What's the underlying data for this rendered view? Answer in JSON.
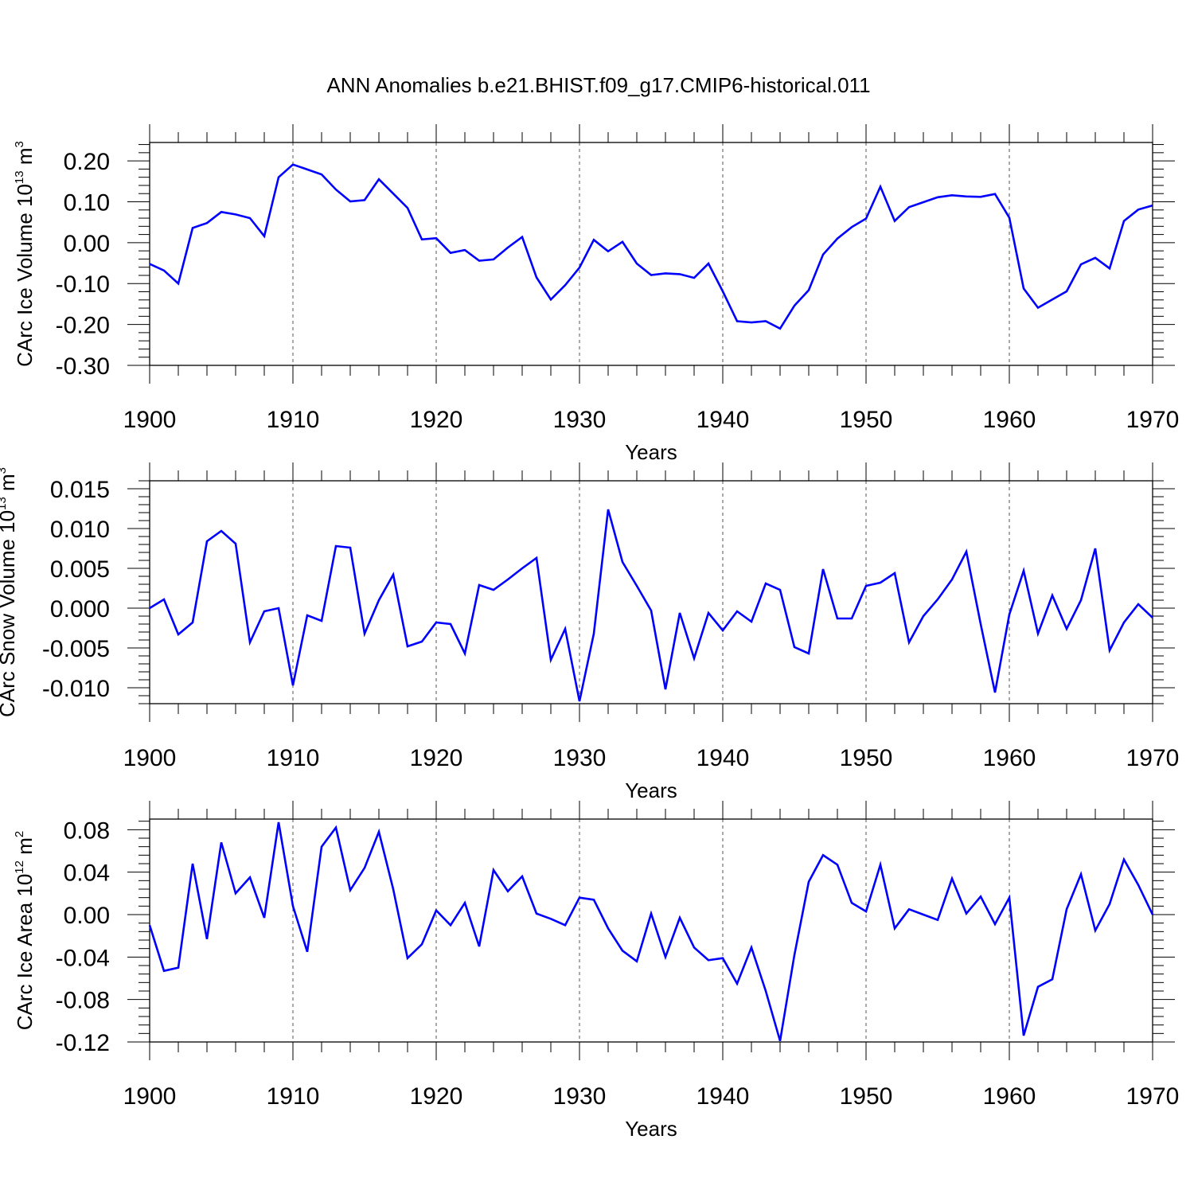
{
  "chart_data": [
    {
      "type": "line",
      "title": "ANN Anomalies b.e21.BHIST.f09_g17.CMIP6-historical.011",
      "xlabel": "Years",
      "ylabel": {
        "main": "CArc Ice Volume 10",
        "exp": "13",
        "unit": " m",
        "unit_exp": "3"
      },
      "xlim": [
        1900,
        1970
      ],
      "ylim": [
        -0.3,
        0.245
      ],
      "yticks": [
        0.2,
        0.1,
        0.0,
        -0.1,
        -0.2,
        -0.3
      ],
      "ytick_labels": [
        "0.20",
        "0.10",
        "0.00",
        "-0.10",
        "-0.20",
        "-0.30"
      ],
      "xticks": [
        1900,
        1910,
        1920,
        1930,
        1940,
        1950,
        1960,
        1970
      ],
      "xtick_labels": [
        "1900",
        "1910",
        "1920",
        "1930",
        "1940",
        "1950",
        "1960",
        "1970"
      ],
      "grid": "vertical dashed at decades",
      "color": "#0000ff",
      "x_start": 1900,
      "values": [
        -0.052,
        -0.068,
        -0.1,
        0.036,
        0.048,
        0.075,
        0.069,
        0.06,
        0.016,
        0.16,
        0.191,
        0.179,
        0.167,
        0.13,
        0.101,
        0.104,
        0.155,
        0.12,
        0.085,
        0.008,
        0.011,
        -0.025,
        -0.018,
        -0.044,
        -0.041,
        -0.012,
        0.014,
        -0.085,
        -0.139,
        -0.104,
        -0.061,
        0.007,
        -0.021,
        0.002,
        -0.051,
        -0.079,
        -0.075,
        -0.077,
        -0.086,
        -0.051,
        -0.119,
        -0.192,
        -0.195,
        -0.192,
        -0.21,
        -0.154,
        -0.116,
        -0.029,
        0.01,
        0.038,
        0.059,
        0.137,
        0.053,
        0.087,
        0.099,
        0.111,
        0.116,
        0.113,
        0.112,
        0.119,
        0.061,
        -0.112,
        -0.159,
        -0.139,
        -0.119,
        -0.053,
        -0.037,
        -0.063,
        0.053,
        0.081,
        0.091
      ]
    },
    {
      "type": "line",
      "title": "",
      "xlabel": "Years",
      "ylabel": {
        "main": "CArc Snow Volume 10",
        "exp": "13",
        "unit": " m",
        "unit_exp": "3"
      },
      "xlim": [
        1900,
        1970
      ],
      "ylim": [
        -0.012,
        0.016
      ],
      "yticks": [
        0.015,
        0.01,
        0.005,
        0.0,
        -0.005,
        -0.01
      ],
      "ytick_labels": [
        "0.015",
        "0.010",
        "0.005",
        "0.000",
        "-0.005",
        "-0.010"
      ],
      "xticks": [
        1900,
        1910,
        1920,
        1930,
        1940,
        1950,
        1960,
        1970
      ],
      "xtick_labels": [
        "1900",
        "1910",
        "1920",
        "1930",
        "1940",
        "1950",
        "1960",
        "1970"
      ],
      "grid": "vertical dashed at decades",
      "color": "#0000ff",
      "x_start": 1900,
      "values": [
        0.0,
        0.0011,
        -0.0033,
        -0.0018,
        0.0084,
        0.0097,
        0.0081,
        -0.0043,
        -0.0004,
        0.0,
        -0.0097,
        -0.0009,
        -0.0016,
        0.0078,
        0.0076,
        -0.0032,
        0.001,
        0.0042,
        -0.0048,
        -0.0042,
        -0.0018,
        -0.002,
        -0.0057,
        0.0029,
        0.0023,
        0.0036,
        0.005,
        0.0063,
        -0.0065,
        -0.0026,
        -0.0117,
        -0.0032,
        0.0124,
        0.0058,
        0.0028,
        -0.0003,
        -0.0102,
        -0.0006,
        -0.0063,
        -0.0006,
        -0.0028,
        -0.0004,
        -0.0017,
        0.0031,
        0.0023,
        -0.0049,
        -0.0057,
        0.0049,
        -0.0013,
        -0.0013,
        0.0028,
        0.0032,
        0.0044,
        -0.0043,
        -0.001,
        0.0011,
        0.0036,
        0.0071,
        -0.002,
        -0.0106,
        -0.0008,
        0.0047,
        -0.0032,
        0.0016,
        -0.0026,
        0.001,
        0.0075,
        -0.0053,
        -0.0018,
        0.0005,
        -0.0012
      ]
    },
    {
      "type": "line",
      "title": "",
      "xlabel": "Years",
      "ylabel": {
        "main": "CArc Ice Area 10",
        "exp": "12",
        "unit": " m",
        "unit_exp": "2"
      },
      "xlim": [
        1900,
        1970
      ],
      "ylim": [
        -0.12,
        0.09
      ],
      "yticks": [
        0.08,
        0.04,
        0.0,
        -0.04,
        -0.08,
        -0.12
      ],
      "ytick_labels": [
        "0.08",
        "0.04",
        "0.00",
        "-0.04",
        "-0.08",
        "-0.12"
      ],
      "xticks": [
        1900,
        1910,
        1920,
        1930,
        1940,
        1950,
        1960,
        1970
      ],
      "xtick_labels": [
        "1900",
        "1910",
        "1920",
        "1930",
        "1940",
        "1950",
        "1960",
        "1970"
      ],
      "grid": "vertical dashed at decades",
      "color": "#0000ff",
      "x_start": 1900,
      "values": [
        -0.01,
        -0.053,
        -0.05,
        0.048,
        -0.023,
        0.068,
        0.02,
        0.035,
        -0.003,
        0.087,
        0.008,
        -0.035,
        0.064,
        0.082,
        0.023,
        0.044,
        0.078,
        0.024,
        -0.041,
        -0.028,
        0.004,
        -0.01,
        0.011,
        -0.03,
        0.042,
        0.022,
        0.036,
        0.001,
        -0.004,
        -0.01,
        0.016,
        0.014,
        -0.013,
        -0.034,
        -0.044,
        0.001,
        -0.04,
        -0.003,
        -0.031,
        -0.043,
        -0.041,
        -0.065,
        -0.031,
        -0.072,
        -0.119,
        -0.038,
        0.031,
        0.056,
        0.047,
        0.011,
        0.003,
        0.047,
        -0.013,
        0.005,
        0.0,
        -0.005,
        0.034,
        0.001,
        0.017,
        -0.009,
        0.016,
        -0.114,
        -0.068,
        -0.061,
        0.005,
        0.038,
        -0.015,
        0.01,
        0.052,
        0.028,
        0.0
      ]
    }
  ]
}
